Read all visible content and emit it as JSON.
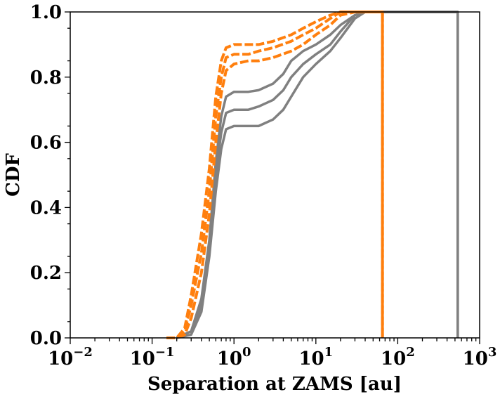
{
  "chart_data": {
    "type": "line",
    "title": "",
    "xlabel": "Separation at ZAMS [au]",
    "ylabel": "CDF",
    "xscale": "log",
    "xlim": [
      0.01,
      1000
    ],
    "ylim": [
      0.0,
      1.0
    ],
    "grid": false,
    "legend": "none",
    "x_ticks": [
      {
        "value": 0.01,
        "base": "10",
        "exp": "−2"
      },
      {
        "value": 0.1,
        "base": "10",
        "exp": "−1"
      },
      {
        "value": 1,
        "base": "10",
        "exp": "0"
      },
      {
        "value": 10,
        "base": "10",
        "exp": "1"
      },
      {
        "value": 100,
        "base": "10",
        "exp": "2"
      },
      {
        "value": 1000,
        "base": "10",
        "exp": "3"
      }
    ],
    "y_ticks": [
      "0.0",
      "0.2",
      "0.4",
      "0.6",
      "0.8",
      "1.0"
    ],
    "colors": {
      "grey_band": "#808080",
      "orange_band": "#ff7f0e"
    },
    "series": [
      {
        "color": "#808080",
        "style": "solid",
        "x": [
          0.2,
          0.3,
          0.4,
          0.5,
          0.6,
          0.7,
          0.8,
          1.0,
          1.5,
          2,
          3,
          4,
          5,
          7,
          10,
          15,
          20,
          30,
          40,
          60,
          100,
          300,
          540
        ],
        "y": [
          0.0,
          0.01,
          0.08,
          0.25,
          0.45,
          0.58,
          0.64,
          0.65,
          0.65,
          0.65,
          0.67,
          0.7,
          0.74,
          0.8,
          0.84,
          0.88,
          0.92,
          0.98,
          1.0,
          1.0,
          1.0,
          1.0,
          1.0
        ],
        "end_drop_x": 540
      },
      {
        "color": "#808080",
        "style": "solid",
        "x": [
          0.2,
          0.3,
          0.4,
          0.5,
          0.6,
          0.7,
          0.8,
          1.0,
          1.5,
          2,
          3,
          4,
          5,
          7,
          10,
          15,
          20,
          30,
          40,
          60,
          100,
          300,
          540
        ],
        "y": [
          0.0,
          0.02,
          0.1,
          0.28,
          0.5,
          0.63,
          0.69,
          0.7,
          0.7,
          0.71,
          0.73,
          0.76,
          0.8,
          0.84,
          0.87,
          0.9,
          0.94,
          0.99,
          1.0,
          1.0,
          1.0,
          1.0,
          1.0
        ],
        "end_drop_x": 540
      },
      {
        "color": "#808080",
        "style": "solid",
        "x": [
          0.2,
          0.3,
          0.4,
          0.5,
          0.6,
          0.7,
          0.8,
          1.0,
          1.5,
          2,
          3,
          4,
          5,
          7,
          10,
          15,
          20,
          30,
          40,
          60,
          100,
          300,
          540
        ],
        "y": [
          0.0,
          0.02,
          0.12,
          0.3,
          0.54,
          0.68,
          0.74,
          0.755,
          0.755,
          0.76,
          0.78,
          0.81,
          0.85,
          0.88,
          0.9,
          0.93,
          0.96,
          0.99,
          1.0,
          1.0,
          1.0,
          1.0,
          1.0
        ],
        "end_drop_x": 540
      },
      {
        "color": "#ff7f0e",
        "style": "dashed",
        "x": [
          0.15,
          0.2,
          0.25,
          0.3,
          0.4,
          0.5,
          0.6,
          0.7,
          0.8,
          1.0,
          1.5,
          2,
          3,
          5,
          7,
          10,
          15,
          20,
          30,
          50,
          65
        ],
        "y": [
          0.0,
          0.0,
          0.01,
          0.06,
          0.2,
          0.38,
          0.6,
          0.75,
          0.82,
          0.84,
          0.85,
          0.85,
          0.86,
          0.88,
          0.9,
          0.93,
          0.96,
          0.99,
          1.0,
          1.0,
          1.0
        ],
        "end_drop_x": 65
      },
      {
        "color": "#ff7f0e",
        "style": "dashed",
        "x": [
          0.15,
          0.2,
          0.25,
          0.3,
          0.4,
          0.5,
          0.6,
          0.7,
          0.8,
          1.0,
          1.5,
          2,
          3,
          5,
          7,
          10,
          15,
          20,
          30,
          50,
          65
        ],
        "y": [
          0.0,
          0.0,
          0.02,
          0.1,
          0.26,
          0.45,
          0.68,
          0.8,
          0.86,
          0.87,
          0.87,
          0.88,
          0.89,
          0.91,
          0.93,
          0.95,
          0.98,
          1.0,
          1.0,
          1.0,
          1.0
        ],
        "end_drop_x": 65
      },
      {
        "color": "#ff7f0e",
        "style": "dashed",
        "x": [
          0.15,
          0.2,
          0.25,
          0.3,
          0.4,
          0.5,
          0.6,
          0.7,
          0.8,
          1.0,
          1.5,
          2,
          3,
          5,
          7,
          10,
          15,
          20,
          30,
          50,
          65
        ],
        "y": [
          0.0,
          0.0,
          0.03,
          0.13,
          0.32,
          0.52,
          0.74,
          0.85,
          0.89,
          0.9,
          0.9,
          0.9,
          0.91,
          0.93,
          0.95,
          0.97,
          0.99,
          1.0,
          1.0,
          1.0,
          1.0
        ],
        "end_drop_x": 65
      }
    ]
  }
}
